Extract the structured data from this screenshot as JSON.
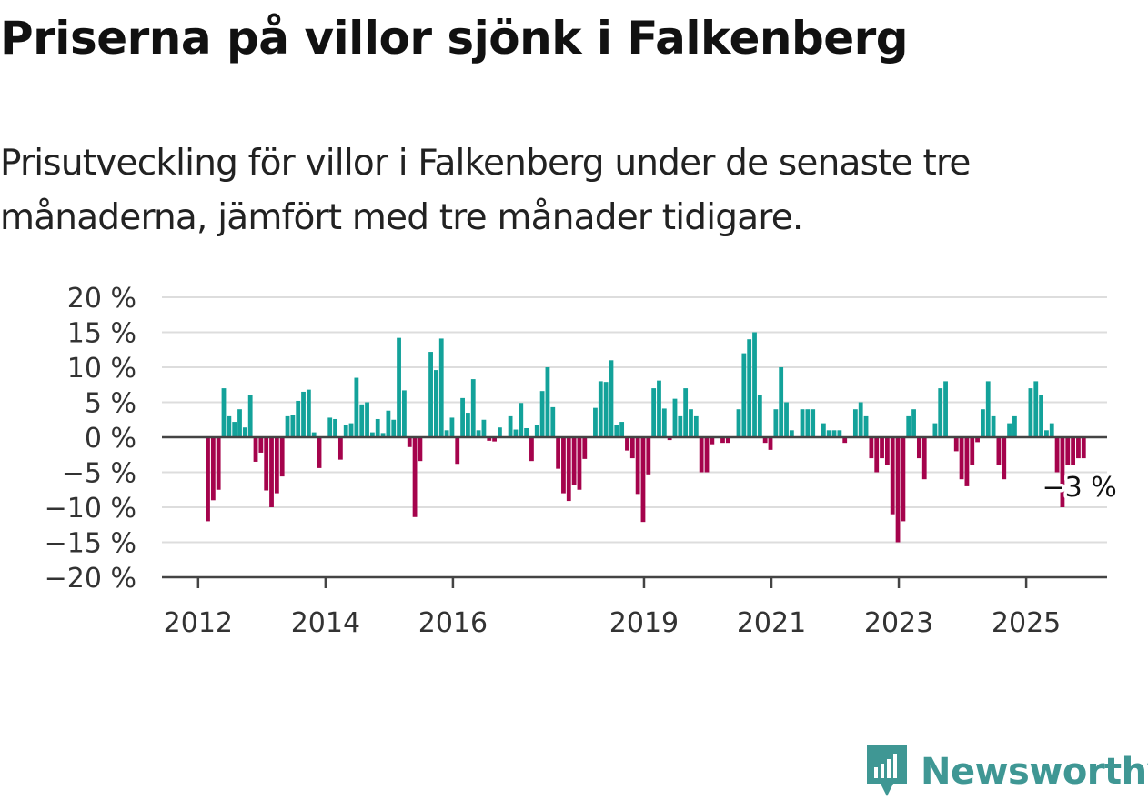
{
  "header": {
    "title": "Priserna på villor sjönk i Falkenberg",
    "subtitle": "Prisutveckling för villor i Falkenberg under de senaste tre månaderna, jämfört med tre månader tidigare."
  },
  "brand": {
    "name": "Newsworthy",
    "color": "#3f9794"
  },
  "colors": {
    "positive": "#13a29a",
    "negative": "#a5034c",
    "grid": "#dddddd",
    "axis": "#444444",
    "tick_text": "#333333"
  },
  "chart_data": {
    "type": "bar",
    "title": "Priserna på villor sjönk i Falkenberg",
    "subtitle": "Prisutveckling för villor i Falkenberg under de senaste tre månaderna, jämfört med tre månader tidigare.",
    "xlabel": "",
    "ylabel": "",
    "ylim": [
      -20,
      20
    ],
    "yticks": [
      20,
      15,
      10,
      5,
      0,
      -5,
      -10,
      -15,
      -20
    ],
    "ytick_labels": [
      "20 %",
      "15 %",
      "10 %",
      "5 %",
      "0 %",
      "−5 %",
      "−10 %",
      "−15 %",
      "−20 %"
    ],
    "xticks": [
      {
        "label": "2012",
        "index": 1
      },
      {
        "label": "2014",
        "index": 25
      },
      {
        "label": "2016",
        "index": 49
      },
      {
        "label": "2019",
        "index": 85
      },
      {
        "label": "2021",
        "index": 109
      },
      {
        "label": "2023",
        "index": 133
      },
      {
        "label": "2025",
        "index": 157
      }
    ],
    "grid": true,
    "annotation": {
      "text": "−3 %",
      "index": 164,
      "value": -3
    },
    "values": [
      -12,
      -9,
      -7.5,
      7,
      3,
      2.2,
      4,
      1.4,
      6,
      -3.5,
      -2.2,
      -7.6,
      -10,
      -8,
      -5.6,
      3,
      3.2,
      5.2,
      6.5,
      6.8,
      0.7,
      -4.4,
      0,
      2.8,
      2.6,
      -3.2,
      1.8,
      2,
      8.5,
      4.7,
      5,
      0.7,
      2.6,
      0.6,
      3.8,
      2.5,
      14.2,
      6.7,
      -1.4,
      -11.4,
      -3.4,
      0,
      12.2,
      9.6,
      14.1,
      1,
      2.8,
      -3.8,
      5.6,
      3.5,
      8.3,
      1,
      2.5,
      -0.5,
      -0.6,
      1.4,
      0,
      3,
      1.1,
      4.9,
      1.3,
      -3.4,
      1.7,
      6.6,
      10,
      4.3,
      -4.5,
      -8,
      -9.1,
      -6.8,
      -7.5,
      -3.1,
      0,
      4.2,
      8,
      7.9,
      11,
      1.8,
      2.2,
      -1.9,
      -3,
      -8.1,
      -12.1,
      -5.3,
      7,
      8.1,
      4.1,
      -0.4,
      5.5,
      3,
      7,
      4,
      3,
      -5,
      -5,
      -1,
      0,
      -0.8,
      -0.8,
      0,
      4,
      12,
      14,
      15,
      6,
      -0.8,
      -1.8,
      4,
      10,
      5,
      1,
      0,
      4,
      4,
      4,
      0,
      2,
      1,
      1,
      1,
      -0.8,
      0,
      4,
      5,
      3,
      -3,
      -5,
      -3,
      -4,
      -11,
      -15,
      -12,
      3,
      4,
      -3,
      -6,
      0,
      2,
      7,
      8,
      0,
      -2,
      -6,
      -7,
      -4,
      -0.7,
      4,
      8,
      3,
      -4,
      -6,
      2,
      3,
      0,
      0,
      7,
      8,
      6,
      1,
      2,
      -5,
      -10,
      -4,
      -4,
      -3,
      -3
    ]
  }
}
